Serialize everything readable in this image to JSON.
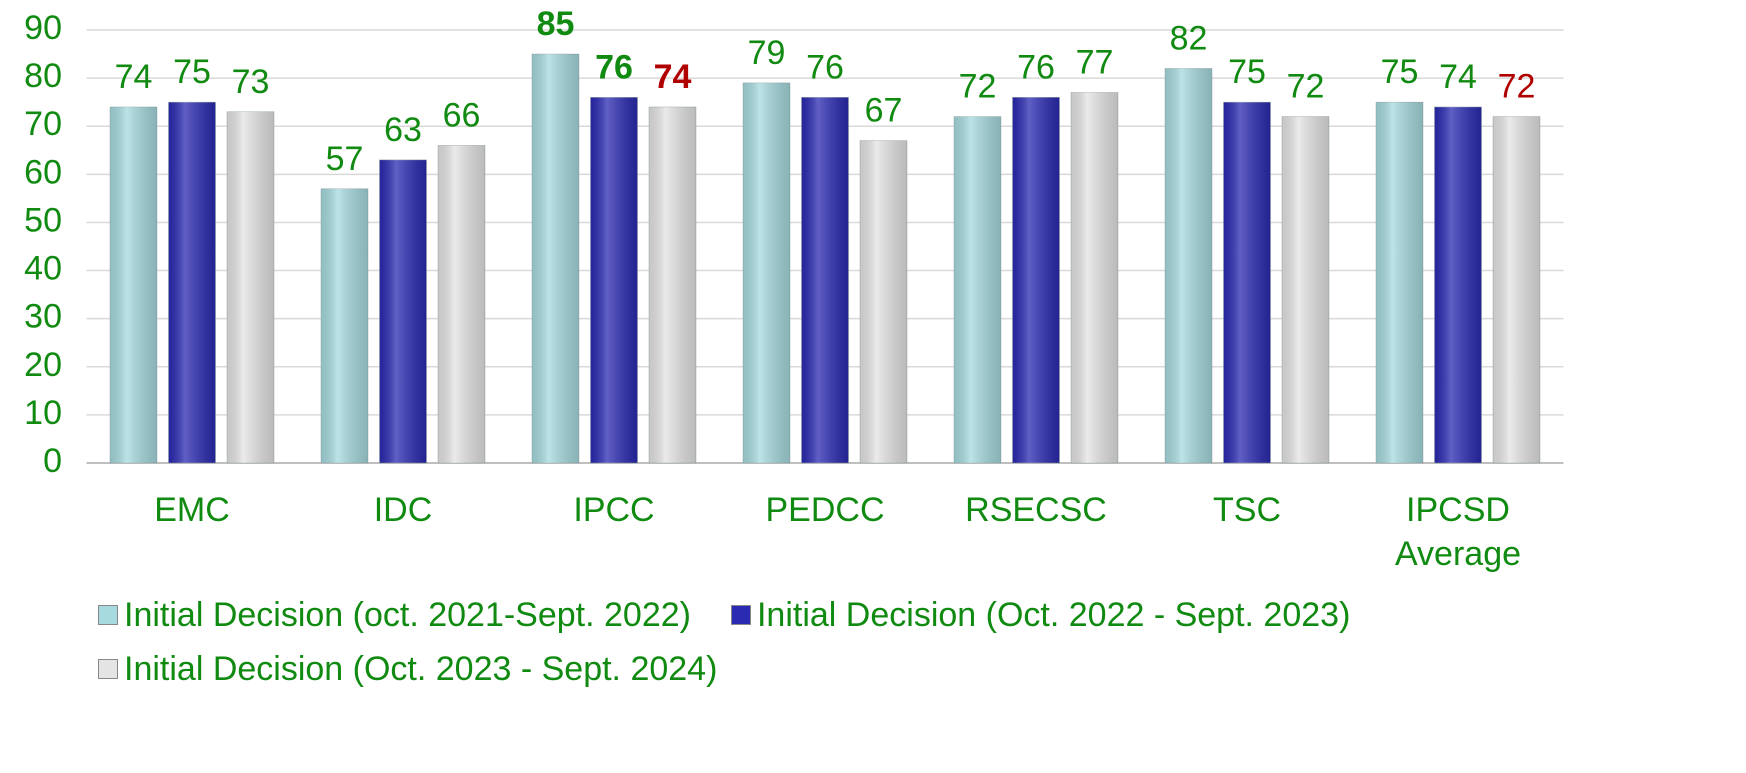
{
  "chart_data": {
    "type": "bar",
    "categories": [
      "EMC",
      "IDC",
      "IPCC",
      "PEDCC",
      "RSECSC",
      "TSC",
      "IPCSD Average"
    ],
    "series": [
      {
        "name": "Initial Decision (oct. 2021-Sept. 2022)",
        "color": "#a6dadf",
        "values": [
          74,
          57,
          85,
          79,
          72,
          82,
          75
        ],
        "label_colors": [
          "#108a10",
          "#108a10",
          "#108a10",
          "#108a10",
          "#108a10",
          "#108a10",
          "#108a10"
        ],
        "label_bold": [
          false,
          false,
          true,
          false,
          false,
          false,
          false
        ]
      },
      {
        "name": "Initial Decision (Oct. 2022 - Sept. 2023)",
        "color": "#2a2ab2",
        "values": [
          75,
          63,
          76,
          76,
          76,
          75,
          74
        ],
        "label_colors": [
          "#108a10",
          "#108a10",
          "#108a10",
          "#108a10",
          "#108a10",
          "#108a10",
          "#108a10"
        ],
        "label_bold": [
          false,
          false,
          true,
          false,
          false,
          false,
          false
        ]
      },
      {
        "name": "Initial Decision (Oct. 2023 - Sept. 2024)",
        "color": "#e4e4e4",
        "values": [
          73,
          66,
          74,
          67,
          77,
          72,
          72
        ],
        "label_colors": [
          "#108a10",
          "#108a10",
          "#b00000",
          "#108a10",
          "#108a10",
          "#108a10",
          "#b00000"
        ],
        "label_bold": [
          false,
          false,
          true,
          false,
          false,
          false,
          false
        ]
      }
    ],
    "ylim": [
      0,
      90
    ],
    "yticks": [
      0,
      10,
      20,
      30,
      40,
      50,
      60,
      70,
      80,
      90
    ],
    "grid": true,
    "legend": "bottom"
  }
}
